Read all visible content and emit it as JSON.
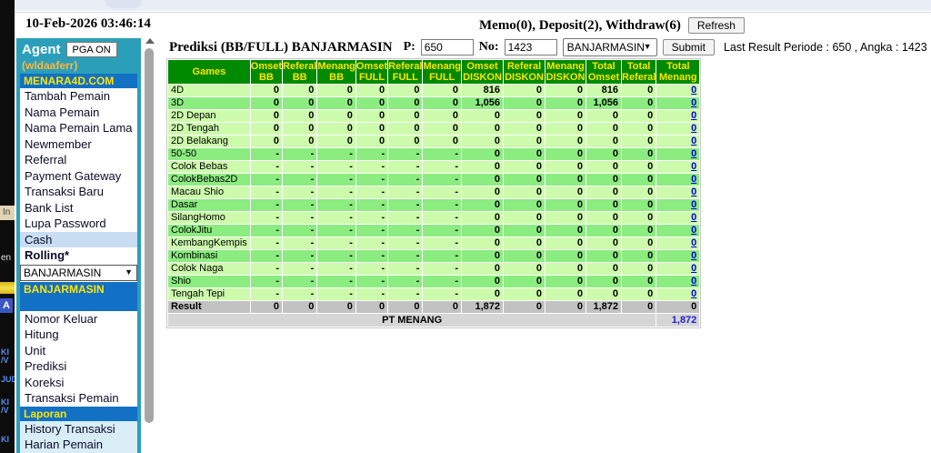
{
  "colors": {
    "sidebar_teal": "#2B9FBA",
    "header_blue": "#1271C4",
    "header_green": "#008A00",
    "row_pale": "#CDFBAC",
    "row_mid": "#8BEC80",
    "cash_highlight": "#C8DCF2",
    "link_blue": "#0000DD",
    "yellow_text": "#FFE400",
    "username_gold": "#FFB63C",
    "laporan_item_bg": "#D8EDF6",
    "result_gray": "#C2C2C2",
    "footer_gray": "#D6D6D6",
    "topstrip": "#E9EDF6"
  },
  "header": {
    "datetime": "10-Feb-2026 03:46:14",
    "memo": "Memo(0), Deposit(2), Withdraw(6)",
    "refresh_label": "Refresh"
  },
  "sidebar": {
    "agent_label": "Agent",
    "pga_button": "PGA ON",
    "username": "(wldaaferr)",
    "site_header": "MENARA4D.COM",
    "menu_top": [
      "Tambah Pemain",
      "Nama Pemain",
      "Nama Pemain Lama",
      "Newmember",
      "Referral",
      "Payment Gateway",
      "Transaksi Baru",
      "Bank List",
      "Lupa Password",
      "Cash",
      "Rolling*"
    ],
    "selected": "Cash",
    "bold_item": "Rolling*",
    "market_select": "BANJARMASIN",
    "market_header": "BANJARMASIN",
    "menu_market": [
      "Nomor Keluar",
      "Hitung",
      "Unit",
      "Prediksi",
      "Koreksi",
      "Transaksi Pemain"
    ],
    "laporan_header": "Laporan",
    "menu_laporan": [
      "History Transaksi",
      "Harian Pemain"
    ]
  },
  "toolbar": {
    "title": "Prediksi (BB/FULL) BANJARMASIN",
    "p_label": "P:",
    "p_value": "650",
    "no_label": "No:",
    "no_value": "1423",
    "market_value": "BANJARMASIN",
    "submit_label": "Submit",
    "last_result": "Last Result Periode : 650 , Angka : 1423"
  },
  "table": {
    "headers": [
      "Games",
      "Omset BB",
      "Referal BB",
      "Menang BB",
      "Omset FULL",
      "Referal FULL",
      "Menang FULL",
      "Omset DISKON",
      "Referal DISKON",
      "Menang DISKON",
      "Total Omset",
      "Total Referal",
      "Total Menang"
    ],
    "rows": [
      {
        "name": "4D",
        "dark": false,
        "cells": [
          "0",
          "0",
          "0",
          "0",
          "0",
          "0",
          "816",
          "0",
          "0",
          "816",
          "0"
        ],
        "link": "0"
      },
      {
        "name": "3D",
        "dark": true,
        "cells": [
          "0",
          "0",
          "0",
          "0",
          "0",
          "0",
          "1,056",
          "0",
          "0",
          "1,056",
          "0"
        ],
        "link": "0"
      },
      {
        "name": "2D Depan",
        "dark": false,
        "cells": [
          "0",
          "0",
          "0",
          "0",
          "0",
          "0",
          "0",
          "0",
          "0",
          "0",
          "0"
        ],
        "link": "0"
      },
      {
        "name": "2D Tengah",
        "dark": false,
        "cells": [
          "0",
          "0",
          "0",
          "0",
          "0",
          "0",
          "0",
          "0",
          "0",
          "0",
          "0"
        ],
        "link": "0"
      },
      {
        "name": "2D Belakang",
        "dark": false,
        "cells": [
          "0",
          "0",
          "0",
          "0",
          "0",
          "0",
          "0",
          "0",
          "0",
          "0",
          "0"
        ],
        "link": "0"
      },
      {
        "name": "50-50",
        "dark": true,
        "cells": [
          "-",
          "-",
          "-",
          "-",
          "-",
          "-",
          "0",
          "0",
          "0",
          "0",
          "0"
        ],
        "link": "0"
      },
      {
        "name": "Colok Bebas",
        "dark": false,
        "cells": [
          "-",
          "-",
          "-",
          "-",
          "-",
          "-",
          "0",
          "0",
          "0",
          "0",
          "0"
        ],
        "link": "0"
      },
      {
        "name": "ColokBebas2D",
        "dark": true,
        "cells": [
          "-",
          "-",
          "-",
          "-",
          "-",
          "-",
          "0",
          "0",
          "0",
          "0",
          "0"
        ],
        "link": "0"
      },
      {
        "name": "Macau Shio",
        "dark": false,
        "cells": [
          "-",
          "-",
          "-",
          "-",
          "-",
          "-",
          "0",
          "0",
          "0",
          "0",
          "0"
        ],
        "link": "0"
      },
      {
        "name": "Dasar",
        "dark": true,
        "cells": [
          "-",
          "-",
          "-",
          "-",
          "-",
          "-",
          "0",
          "0",
          "0",
          "0",
          "0"
        ],
        "link": "0"
      },
      {
        "name": "SilangHomo",
        "dark": false,
        "cells": [
          "-",
          "-",
          "-",
          "-",
          "-",
          "-",
          "0",
          "0",
          "0",
          "0",
          "0"
        ],
        "link": "0"
      },
      {
        "name": "ColokJitu",
        "dark": true,
        "cells": [
          "-",
          "-",
          "-",
          "-",
          "-",
          "-",
          "0",
          "0",
          "0",
          "0",
          "0"
        ],
        "link": "0"
      },
      {
        "name": "KembangKempis",
        "dark": false,
        "cells": [
          "-",
          "-",
          "-",
          "-",
          "-",
          "-",
          "0",
          "0",
          "0",
          "0",
          "0"
        ],
        "link": "0"
      },
      {
        "name": "Kombinasi",
        "dark": true,
        "cells": [
          "-",
          "-",
          "-",
          "-",
          "-",
          "-",
          "0",
          "0",
          "0",
          "0",
          "0"
        ],
        "link": "0"
      },
      {
        "name": "Colok Naga",
        "dark": false,
        "cells": [
          "-",
          "-",
          "-",
          "-",
          "-",
          "-",
          "0",
          "0",
          "0",
          "0",
          "0"
        ],
        "link": "0"
      },
      {
        "name": "Shio",
        "dark": true,
        "cells": [
          "-",
          "-",
          "-",
          "-",
          "-",
          "-",
          "0",
          "0",
          "0",
          "0",
          "0"
        ],
        "link": "0"
      },
      {
        "name": "Tengah Tepi",
        "dark": false,
        "cells": [
          "-",
          "-",
          "-",
          "-",
          "-",
          "-",
          "0",
          "0",
          "0",
          "0",
          "0"
        ],
        "link": "0"
      }
    ],
    "result_row": {
      "name": "Result",
      "cells": [
        "0",
        "0",
        "0",
        "0",
        "0",
        "0",
        "1,872",
        "0",
        "0",
        "1,872",
        "0",
        "0"
      ]
    },
    "footer": {
      "label": "PT MENANG",
      "value": "1,872"
    }
  },
  "fragments": {
    "in": "In",
    "en": "en",
    "a": "A",
    "ki1": "KI",
    "v1": "/V",
    "jud": "JUD",
    "ki2": "KI",
    "v2": "/V",
    "ki3": "KI"
  }
}
